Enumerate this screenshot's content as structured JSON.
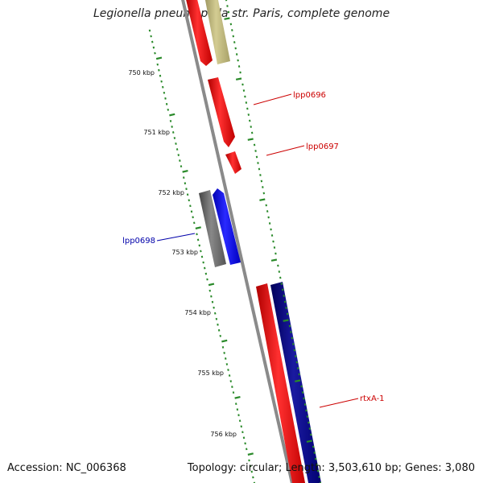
{
  "header": {
    "title": "Legionella pneumophila str. Paris, complete genome"
  },
  "footer": {
    "accession": "Accession: NC_006368",
    "summary": "Topology: circular; Length: 3,503,610 bp; Genes: 3,080"
  },
  "ruler": {
    "unit": "kbp",
    "major_ticks": [
      "750 kbp",
      "751 kbp",
      "752 kbp",
      "753 kbp",
      "754 kbp",
      "755 kbp",
      "756 kbp"
    ],
    "tick_color": "#2a8a2a"
  },
  "gene_labels": [
    {
      "text": "lpp0696",
      "color": "#cc0000"
    },
    {
      "text": "lpp0697",
      "color": "#cc0000"
    },
    {
      "text": "lpp0698",
      "color": "#0000aa"
    },
    {
      "text": "rtxA-1",
      "color": "#cc0000"
    }
  ],
  "colors": {
    "forward_cds": "#ff0000",
    "reverse_cds": "#0000ff",
    "dark_reverse": "#000080",
    "gray_feature": "#666666",
    "tan_feature": "#bdb67a",
    "backbone": "#888888"
  }
}
